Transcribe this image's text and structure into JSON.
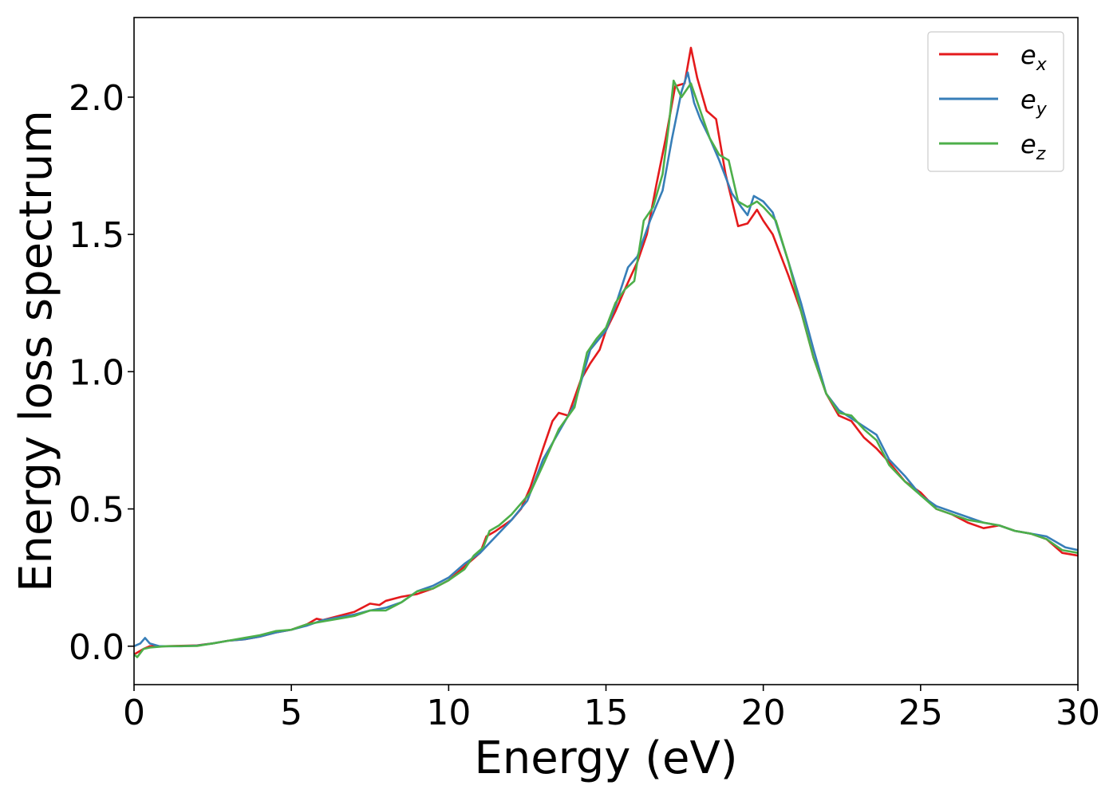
{
  "chart_data": {
    "type": "line",
    "title": "",
    "xlabel": "Energy (eV)",
    "ylabel": "Energy loss spectrum",
    "xlim": [
      0,
      30
    ],
    "ylim": [
      -0.14,
      2.29
    ],
    "xticks": [
      0,
      5,
      10,
      15,
      20,
      25,
      30
    ],
    "xtick_labels": [
      "0",
      "5",
      "10",
      "15",
      "20",
      "25",
      "30"
    ],
    "yticks": [
      0.0,
      0.5,
      1.0,
      1.5,
      2.0
    ],
    "ytick_labels": [
      "0.0",
      "0.5",
      "1.0",
      "1.5",
      "2.0"
    ],
    "grid": false,
    "legend_position": "top-right",
    "series": [
      {
        "name": "e_x",
        "label_base": "e",
        "label_sub": "x",
        "color": "#e41a1c",
        "points": [
          [
            0,
            -0.03
          ],
          [
            0.3,
            -0.01
          ],
          [
            0.5,
            0.0
          ],
          [
            1,
            0.0
          ],
          [
            2,
            0.003
          ],
          [
            2.5,
            0.01
          ],
          [
            3,
            0.02
          ],
          [
            3.5,
            0.025
          ],
          [
            4,
            0.035
          ],
          [
            4.5,
            0.05
          ],
          [
            5,
            0.06
          ],
          [
            5.5,
            0.08
          ],
          [
            5.8,
            0.1
          ],
          [
            6,
            0.095
          ],
          [
            6.5,
            0.11
          ],
          [
            7,
            0.125
          ],
          [
            7.5,
            0.155
          ],
          [
            7.8,
            0.15
          ],
          [
            8,
            0.165
          ],
          [
            8.5,
            0.18
          ],
          [
            9,
            0.19
          ],
          [
            9.5,
            0.21
          ],
          [
            10,
            0.24
          ],
          [
            10.5,
            0.29
          ],
          [
            11,
            0.34
          ],
          [
            11.2,
            0.4
          ],
          [
            11.5,
            0.42
          ],
          [
            12,
            0.46
          ],
          [
            12.3,
            0.5
          ],
          [
            12.6,
            0.58
          ],
          [
            13,
            0.72
          ],
          [
            13.3,
            0.82
          ],
          [
            13.5,
            0.85
          ],
          [
            13.8,
            0.84
          ],
          [
            14.2,
            0.97
          ],
          [
            14.5,
            1.03
          ],
          [
            14.8,
            1.08
          ],
          [
            15.0,
            1.15
          ],
          [
            15.3,
            1.22
          ],
          [
            15.6,
            1.3
          ],
          [
            16,
            1.4
          ],
          [
            16.3,
            1.5
          ],
          [
            16.6,
            1.68
          ],
          [
            16.9,
            1.85
          ],
          [
            17.2,
            2.04
          ],
          [
            17.5,
            2.05
          ],
          [
            17.7,
            2.18
          ],
          [
            17.9,
            2.07
          ],
          [
            18.2,
            1.95
          ],
          [
            18.5,
            1.92
          ],
          [
            18.8,
            1.72
          ],
          [
            19.2,
            1.53
          ],
          [
            19.5,
            1.54
          ],
          [
            19.8,
            1.59
          ],
          [
            20,
            1.55
          ],
          [
            20.3,
            1.5
          ],
          [
            20.8,
            1.35
          ],
          [
            21.2,
            1.22
          ],
          [
            21.6,
            1.05
          ],
          [
            22,
            0.92
          ],
          [
            22.4,
            0.84
          ],
          [
            22.8,
            0.82
          ],
          [
            23.2,
            0.76
          ],
          [
            23.6,
            0.72
          ],
          [
            24,
            0.67
          ],
          [
            24.5,
            0.6
          ],
          [
            25,
            0.56
          ],
          [
            25.5,
            0.5
          ],
          [
            26,
            0.48
          ],
          [
            26.5,
            0.45
          ],
          [
            27,
            0.43
          ],
          [
            27.5,
            0.44
          ],
          [
            28,
            0.42
          ],
          [
            28.5,
            0.41
          ],
          [
            29,
            0.39
          ],
          [
            29.5,
            0.34
          ],
          [
            30,
            0.33
          ]
        ]
      },
      {
        "name": "e_y",
        "label_base": "e",
        "label_sub": "y",
        "color": "#377eb8",
        "points": [
          [
            0,
            0.0
          ],
          [
            0.2,
            0.01
          ],
          [
            0.35,
            0.03
          ],
          [
            0.5,
            0.01
          ],
          [
            0.8,
            0.0
          ],
          [
            1.5,
            0.0
          ],
          [
            2,
            0.002
          ],
          [
            2.5,
            0.01
          ],
          [
            3,
            0.02
          ],
          [
            3.5,
            0.025
          ],
          [
            4,
            0.035
          ],
          [
            4.5,
            0.05
          ],
          [
            5,
            0.06
          ],
          [
            5.5,
            0.075
          ],
          [
            6,
            0.095
          ],
          [
            6.5,
            0.105
          ],
          [
            7,
            0.115
          ],
          [
            7.5,
            0.13
          ],
          [
            8,
            0.14
          ],
          [
            8.5,
            0.16
          ],
          [
            9,
            0.2
          ],
          [
            9.5,
            0.22
          ],
          [
            10,
            0.25
          ],
          [
            10.5,
            0.3
          ],
          [
            11,
            0.34
          ],
          [
            11.5,
            0.4
          ],
          [
            12,
            0.46
          ],
          [
            12.5,
            0.53
          ],
          [
            13,
            0.68
          ],
          [
            13.5,
            0.78
          ],
          [
            14,
            0.88
          ],
          [
            14.5,
            1.08
          ],
          [
            15,
            1.15
          ],
          [
            15.3,
            1.24
          ],
          [
            15.7,
            1.38
          ],
          [
            16,
            1.42
          ],
          [
            16.4,
            1.55
          ],
          [
            16.8,
            1.66
          ],
          [
            17.1,
            1.85
          ],
          [
            17.4,
            2.02
          ],
          [
            17.6,
            2.09
          ],
          [
            17.8,
            1.98
          ],
          [
            18,
            1.92
          ],
          [
            18.3,
            1.85
          ],
          [
            18.6,
            1.77
          ],
          [
            19,
            1.65
          ],
          [
            19.3,
            1.6
          ],
          [
            19.5,
            1.57
          ],
          [
            19.7,
            1.64
          ],
          [
            20,
            1.62
          ],
          [
            20.3,
            1.58
          ],
          [
            20.8,
            1.4
          ],
          [
            21.2,
            1.25
          ],
          [
            21.6,
            1.08
          ],
          [
            22,
            0.92
          ],
          [
            22.4,
            0.86
          ],
          [
            22.8,
            0.83
          ],
          [
            23.2,
            0.8
          ],
          [
            23.6,
            0.77
          ],
          [
            24,
            0.68
          ],
          [
            24.5,
            0.62
          ],
          [
            25,
            0.55
          ],
          [
            25.5,
            0.51
          ],
          [
            26,
            0.49
          ],
          [
            26.5,
            0.47
          ],
          [
            27,
            0.45
          ],
          [
            27.5,
            0.44
          ],
          [
            28,
            0.42
          ],
          [
            28.5,
            0.41
          ],
          [
            29,
            0.4
          ],
          [
            29.6,
            0.36
          ],
          [
            30,
            0.35
          ]
        ]
      },
      {
        "name": "e_z",
        "label_base": "e",
        "label_sub": "z",
        "color": "#4daf4a",
        "points": [
          [
            0,
            -0.03
          ],
          [
            0.1,
            -0.04
          ],
          [
            0.3,
            -0.01
          ],
          [
            0.5,
            -0.005
          ],
          [
            1,
            0.0
          ],
          [
            2,
            0.001
          ],
          [
            2.5,
            0.01
          ],
          [
            3,
            0.02
          ],
          [
            3.5,
            0.03
          ],
          [
            4,
            0.04
          ],
          [
            4.5,
            0.055
          ],
          [
            5,
            0.06
          ],
          [
            5.5,
            0.08
          ],
          [
            6,
            0.09
          ],
          [
            6.5,
            0.1
          ],
          [
            7,
            0.11
          ],
          [
            7.5,
            0.13
          ],
          [
            8,
            0.13
          ],
          [
            8.5,
            0.16
          ],
          [
            9,
            0.2
          ],
          [
            9.5,
            0.21
          ],
          [
            10,
            0.24
          ],
          [
            10.5,
            0.28
          ],
          [
            10.8,
            0.33
          ],
          [
            11.1,
            0.36
          ],
          [
            11.3,
            0.42
          ],
          [
            11.6,
            0.44
          ],
          [
            12,
            0.48
          ],
          [
            12.3,
            0.52
          ],
          [
            12.6,
            0.56
          ],
          [
            13,
            0.66
          ],
          [
            13.5,
            0.79
          ],
          [
            14,
            0.87
          ],
          [
            14.4,
            1.07
          ],
          [
            14.7,
            1.12
          ],
          [
            15,
            1.16
          ],
          [
            15.3,
            1.25
          ],
          [
            15.6,
            1.3
          ],
          [
            15.9,
            1.33
          ],
          [
            16.2,
            1.55
          ],
          [
            16.5,
            1.6
          ],
          [
            16.8,
            1.72
          ],
          [
            17.0,
            1.9
          ],
          [
            17.15,
            2.06
          ],
          [
            17.4,
            2.0
          ],
          [
            17.7,
            2.05
          ],
          [
            18,
            1.95
          ],
          [
            18.3,
            1.85
          ],
          [
            18.6,
            1.79
          ],
          [
            18.9,
            1.77
          ],
          [
            19.2,
            1.62
          ],
          [
            19.5,
            1.6
          ],
          [
            19.8,
            1.62
          ],
          [
            20,
            1.6
          ],
          [
            20.4,
            1.55
          ],
          [
            20.8,
            1.4
          ],
          [
            21.2,
            1.22
          ],
          [
            21.6,
            1.05
          ],
          [
            22,
            0.92
          ],
          [
            22.4,
            0.85
          ],
          [
            22.8,
            0.84
          ],
          [
            23.2,
            0.79
          ],
          [
            23.6,
            0.75
          ],
          [
            24,
            0.66
          ],
          [
            24.5,
            0.6
          ],
          [
            25,
            0.55
          ],
          [
            25.5,
            0.5
          ],
          [
            26,
            0.48
          ],
          [
            26.5,
            0.46
          ],
          [
            27,
            0.45
          ],
          [
            27.5,
            0.44
          ],
          [
            28,
            0.42
          ],
          [
            28.5,
            0.41
          ],
          [
            29,
            0.39
          ],
          [
            29.5,
            0.35
          ],
          [
            30,
            0.34
          ]
        ]
      }
    ]
  }
}
